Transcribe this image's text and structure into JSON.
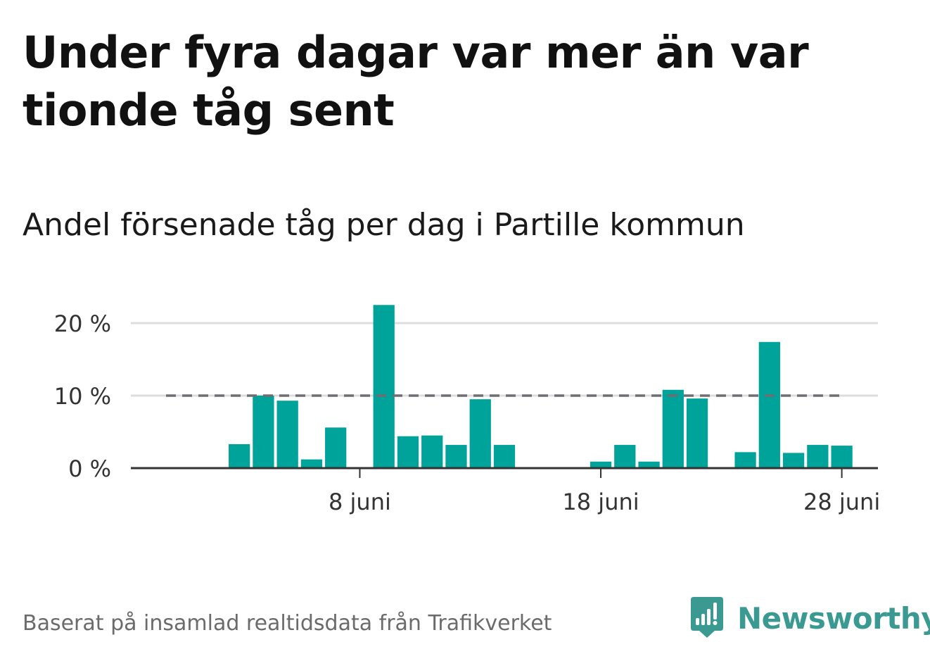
{
  "title": "Under fyra dagar var mer än var tionde tåg sent",
  "subtitle": "Andel försenade tåg per dag i Partille kommun",
  "source": "Baserat på insamlad realtidsdata från Trafikverket",
  "brand": {
    "name": "Newsworthy",
    "icon": "newsworthy-logo-icon",
    "color": "#3a9a92"
  },
  "colors": {
    "bar": "#00a39a",
    "reference_line": "#6e6e73",
    "grid": "#dddddd",
    "axis": "#333333"
  },
  "chart_data": {
    "type": "bar",
    "x_start": "2019-05-30",
    "x_end": "2019-06-29",
    "ylim": [
      0,
      22.5
    ],
    "y_ticks": [
      0,
      10,
      20
    ],
    "y_tick_labels": [
      "0 %",
      "10 %",
      "20 %"
    ],
    "x_ticks": [
      "2019-06-08",
      "2019-06-18",
      "2019-06-28"
    ],
    "x_tick_labels": [
      "8 juni",
      "18 juni",
      "28 juni"
    ],
    "reference_line": {
      "value": 10,
      "style": "dashed"
    },
    "grid": true,
    "x": [
      "2019-06-03",
      "2019-06-04",
      "2019-06-05",
      "2019-06-06",
      "2019-06-07",
      "2019-06-08",
      "2019-06-09",
      "2019-06-10",
      "2019-06-11",
      "2019-06-12",
      "2019-06-13",
      "2019-06-14",
      "2019-06-15",
      "2019-06-16",
      "2019-06-17",
      "2019-06-18",
      "2019-06-19",
      "2019-06-20",
      "2019-06-21",
      "2019-06-22",
      "2019-06-23",
      "2019-06-24",
      "2019-06-25",
      "2019-06-26",
      "2019-06-27",
      "2019-06-28"
    ],
    "values": [
      3.3,
      10.0,
      9.3,
      1.2,
      5.6,
      null,
      22.5,
      4.4,
      4.5,
      3.2,
      9.5,
      3.2,
      null,
      null,
      null,
      0.9,
      3.2,
      0.9,
      10.8,
      9.6,
      null,
      2.2,
      17.4,
      2.1,
      3.2,
      3.1
    ]
  }
}
